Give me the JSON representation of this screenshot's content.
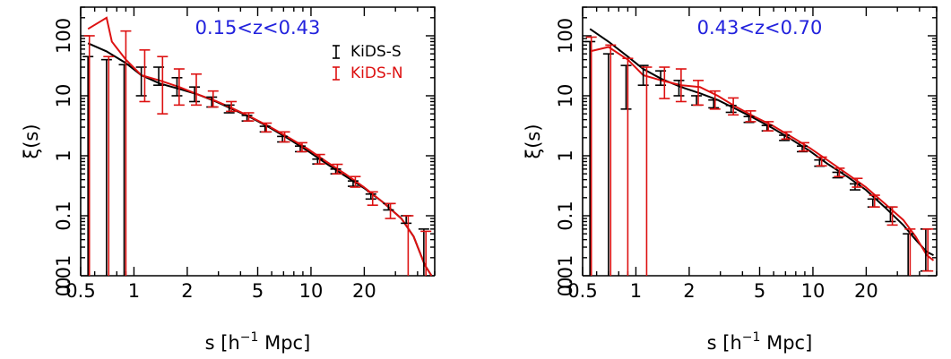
{
  "chart_data": [
    {
      "type": "scatter",
      "title": "0.15<z<0.43",
      "title_color": "#2222dd",
      "xlabel": "s [h$^{-1}$ Mpc]",
      "xlabel_parts": [
        "s [h",
        "−1",
        " Mpc]"
      ],
      "ylabel": "ξ(s)",
      "xscale": "log",
      "yscale": "log",
      "xlim": [
        0.5,
        50
      ],
      "ylim": [
        0.01,
        300
      ],
      "x_ticks": [
        "0.5",
        "1",
        "2",
        "5",
        "10",
        "20"
      ],
      "y_ticks": [
        "0.01",
        "0.1",
        "1",
        "10",
        "100"
      ],
      "y_zero_label": "0",
      "legend_position": "top-right",
      "series": [
        {
          "name": "KiDS-S",
          "color": "#000000",
          "x": [
            0.55,
            0.7,
            0.88,
            1.1,
            1.38,
            1.75,
            2.2,
            2.75,
            3.45,
            4.35,
            5.5,
            6.9,
            8.7,
            10.9,
            13.8,
            17.3,
            21.8,
            27.4,
            34.5,
            43.4
          ],
          "y": [
            8.0,
            6.0,
            3.5,
            20,
            22,
            14,
            10,
            7.6,
            6.0,
            4.2,
            2.8,
            1.9,
            1.3,
            0.8,
            0.55,
            0.34,
            0.21,
            0.14,
            0.085,
            0.03
          ],
          "yerr_low": [
            0.01,
            0.01,
            0.01,
            10,
            15,
            10,
            8,
            6.5,
            5.2,
            3.8,
            2.5,
            1.7,
            1.17,
            0.73,
            0.5,
            0.31,
            0.19,
            0.125,
            0.075,
            0.01
          ],
          "yerr_high": [
            45,
            40,
            33,
            30,
            30,
            20,
            14,
            9.5,
            7.0,
            4.7,
            3.1,
            2.1,
            1.45,
            0.88,
            0.6,
            0.38,
            0.23,
            0.16,
            0.1,
            0.06
          ]
        },
        {
          "name": "KiDS-N",
          "color": "#dd1111",
          "x": [
            0.56,
            0.72,
            0.9,
            1.15,
            1.45,
            1.8,
            2.25,
            2.8,
            3.55,
            4.45,
            5.6,
            7.1,
            8.9,
            11.2,
            14.1,
            17.8,
            22.3,
            28.1,
            35.4,
            44.6
          ],
          "y": [
            60,
            8.0,
            8.0,
            20,
            12,
            13,
            12,
            8.5,
            6.5,
            4.5,
            3.0,
            2.2,
            1.4,
            0.88,
            0.62,
            0.4,
            0.2,
            0.12,
            0.07,
            0.018
          ],
          "yerr_low": [
            0.01,
            0.01,
            0.01,
            8,
            5,
            7,
            7,
            6.5,
            5.5,
            3.8,
            2.5,
            1.7,
            1.17,
            0.73,
            0.5,
            0.3,
            0.15,
            0.09,
            0.01,
            0.01
          ],
          "yerr_high": [
            100,
            45,
            120,
            58,
            45,
            28,
            23,
            12,
            8.0,
            5.2,
            3.5,
            2.5,
            1.65,
            1.05,
            0.72,
            0.45,
            0.25,
            0.16,
            0.1,
            0.055
          ]
        }
      ],
      "models": [
        {
          "color": "#000000",
          "x": [
            0.55,
            0.7,
            0.9,
            1.1,
            1.4,
            1.8,
            2.3,
            2.9,
            3.6,
            4.6,
            5.9,
            7.5,
            9.6,
            12.2,
            15.6,
            19.9,
            25.4,
            32.4,
            38.0,
            44.0,
            48.0
          ],
          "y": [
            75,
            55,
            35,
            22,
            16,
            13,
            10.5,
            8.0,
            6.0,
            4.3,
            2.9,
            1.9,
            1.2,
            0.74,
            0.46,
            0.29,
            0.17,
            0.09,
            0.045,
            0.015,
            0.006
          ]
        },
        {
          "color": "#dd1111",
          "x": [
            0.55,
            0.7,
            0.75,
            0.9,
            1.1,
            1.4,
            1.8,
            2.3,
            2.9,
            3.6,
            4.6,
            5.9,
            7.5,
            9.6,
            12.2,
            15.6,
            19.9,
            25.4,
            32.4,
            38.0,
            44.0,
            48.0
          ],
          "y": [
            130,
            200,
            80,
            40,
            22,
            18,
            14,
            10.5,
            8.2,
            6.2,
            4.4,
            3.0,
            2.0,
            1.3,
            0.8,
            0.5,
            0.3,
            0.17,
            0.09,
            0.045,
            0.015,
            0.006
          ]
        }
      ]
    },
    {
      "type": "scatter",
      "title": "0.43<z<0.70",
      "title_color": "#2222dd",
      "xlabel": "s [h$^{-1}$ Mpc]",
      "xlabel_parts": [
        "s [h",
        "−1",
        " Mpc]"
      ],
      "ylabel": "ξ(s)",
      "xscale": "log",
      "yscale": "log",
      "xlim": [
        0.5,
        50
      ],
      "ylim": [
        0.01,
        300
      ],
      "x_ticks": [
        "0.5",
        "1",
        "2",
        "5",
        "10",
        "20"
      ],
      "y_ticks": [
        "0.01",
        "0.1",
        "1",
        "10",
        "100"
      ],
      "y_zero_label": "0",
      "series": [
        {
          "name": "KiDS-S",
          "color": "#000000",
          "x": [
            0.55,
            0.7,
            0.88,
            1.1,
            1.38,
            1.75,
            2.2,
            2.75,
            3.45,
            4.35,
            5.5,
            6.9,
            8.7,
            10.9,
            13.8,
            17.3,
            21.8,
            27.4,
            34.5,
            43.4
          ],
          "y": [
            40,
            6.0,
            9.5,
            22,
            20,
            15,
            8.5,
            7.4,
            6.1,
            4.0,
            2.9,
            2.0,
            1.3,
            0.75,
            0.48,
            0.3,
            0.16,
            0.11,
            0.02,
            0.03
          ],
          "yerr_low": [
            0.01,
            0.01,
            6,
            15,
            15,
            10,
            7,
            6.3,
            5.3,
            3.6,
            2.6,
            1.8,
            1.17,
            0.67,
            0.43,
            0.27,
            0.14,
            0.08,
            0.01,
            0.012
          ],
          "yerr_high": [
            80,
            50,
            32,
            32,
            26,
            18,
            10,
            8.5,
            6.9,
            4.5,
            3.2,
            2.2,
            1.45,
            0.85,
            0.53,
            0.34,
            0.19,
            0.14,
            0.05,
            0.06
          ]
        },
        {
          "name": "KiDS-N",
          "color": "#dd1111",
          "x": [
            0.56,
            0.72,
            0.9,
            1.15,
            1.45,
            1.8,
            2.25,
            2.8,
            3.55,
            4.45,
            5.6,
            7.1,
            8.9,
            11.2,
            14.1,
            17.8,
            22.3,
            28.1,
            35.4,
            44.6
          ],
          "y": [
            10,
            9.0,
            4.0,
            6.0,
            15,
            12,
            11,
            8.5,
            6.0,
            4.5,
            3.1,
            2.2,
            1.4,
            0.8,
            0.52,
            0.35,
            0.18,
            0.1,
            0.04,
            0.025
          ],
          "yerr_low": [
            0.01,
            0.01,
            0.01,
            0.01,
            9,
            8,
            7,
            6,
            4.8,
            3.7,
            2.6,
            1.9,
            1.2,
            0.68,
            0.45,
            0.3,
            0.14,
            0.07,
            0.01,
            0.012
          ],
          "yerr_high": [
            95,
            70,
            42,
            30,
            30,
            28,
            18,
            12,
            9.2,
            5.6,
            3.7,
            2.5,
            1.65,
            0.95,
            0.62,
            0.42,
            0.22,
            0.14,
            0.06,
            0.06
          ]
        }
      ],
      "models": [
        {
          "color": "#000000",
          "x": [
            0.55,
            0.7,
            0.9,
            1.1,
            1.4,
            1.8,
            2.3,
            2.9,
            3.6,
            4.6,
            5.9,
            7.5,
            9.6,
            12.2,
            15.6,
            19.9,
            25.4,
            32.4,
            38.0,
            44.0,
            48.0
          ],
          "y": [
            130,
            80,
            45,
            28,
            19,
            14,
            11,
            8.5,
            6.2,
            4.3,
            2.9,
            1.9,
            1.2,
            0.72,
            0.45,
            0.27,
            0.14,
            0.07,
            0.04,
            0.025,
            0.022
          ]
        },
        {
          "color": "#dd1111",
          "x": [
            0.55,
            0.7,
            0.9,
            1.1,
            1.4,
            1.8,
            2.3,
            2.9,
            3.6,
            4.6,
            5.9,
            7.5,
            9.6,
            12.2,
            15.6,
            19.9,
            25.4,
            32.4,
            38.0,
            44.0,
            48.0
          ],
          "y": [
            55,
            65,
            40,
            22,
            18,
            15,
            14,
            10,
            6.8,
            4.6,
            3.2,
            2.1,
            1.35,
            0.83,
            0.5,
            0.3,
            0.16,
            0.085,
            0.045,
            0.022,
            0.018
          ]
        }
      ]
    }
  ]
}
